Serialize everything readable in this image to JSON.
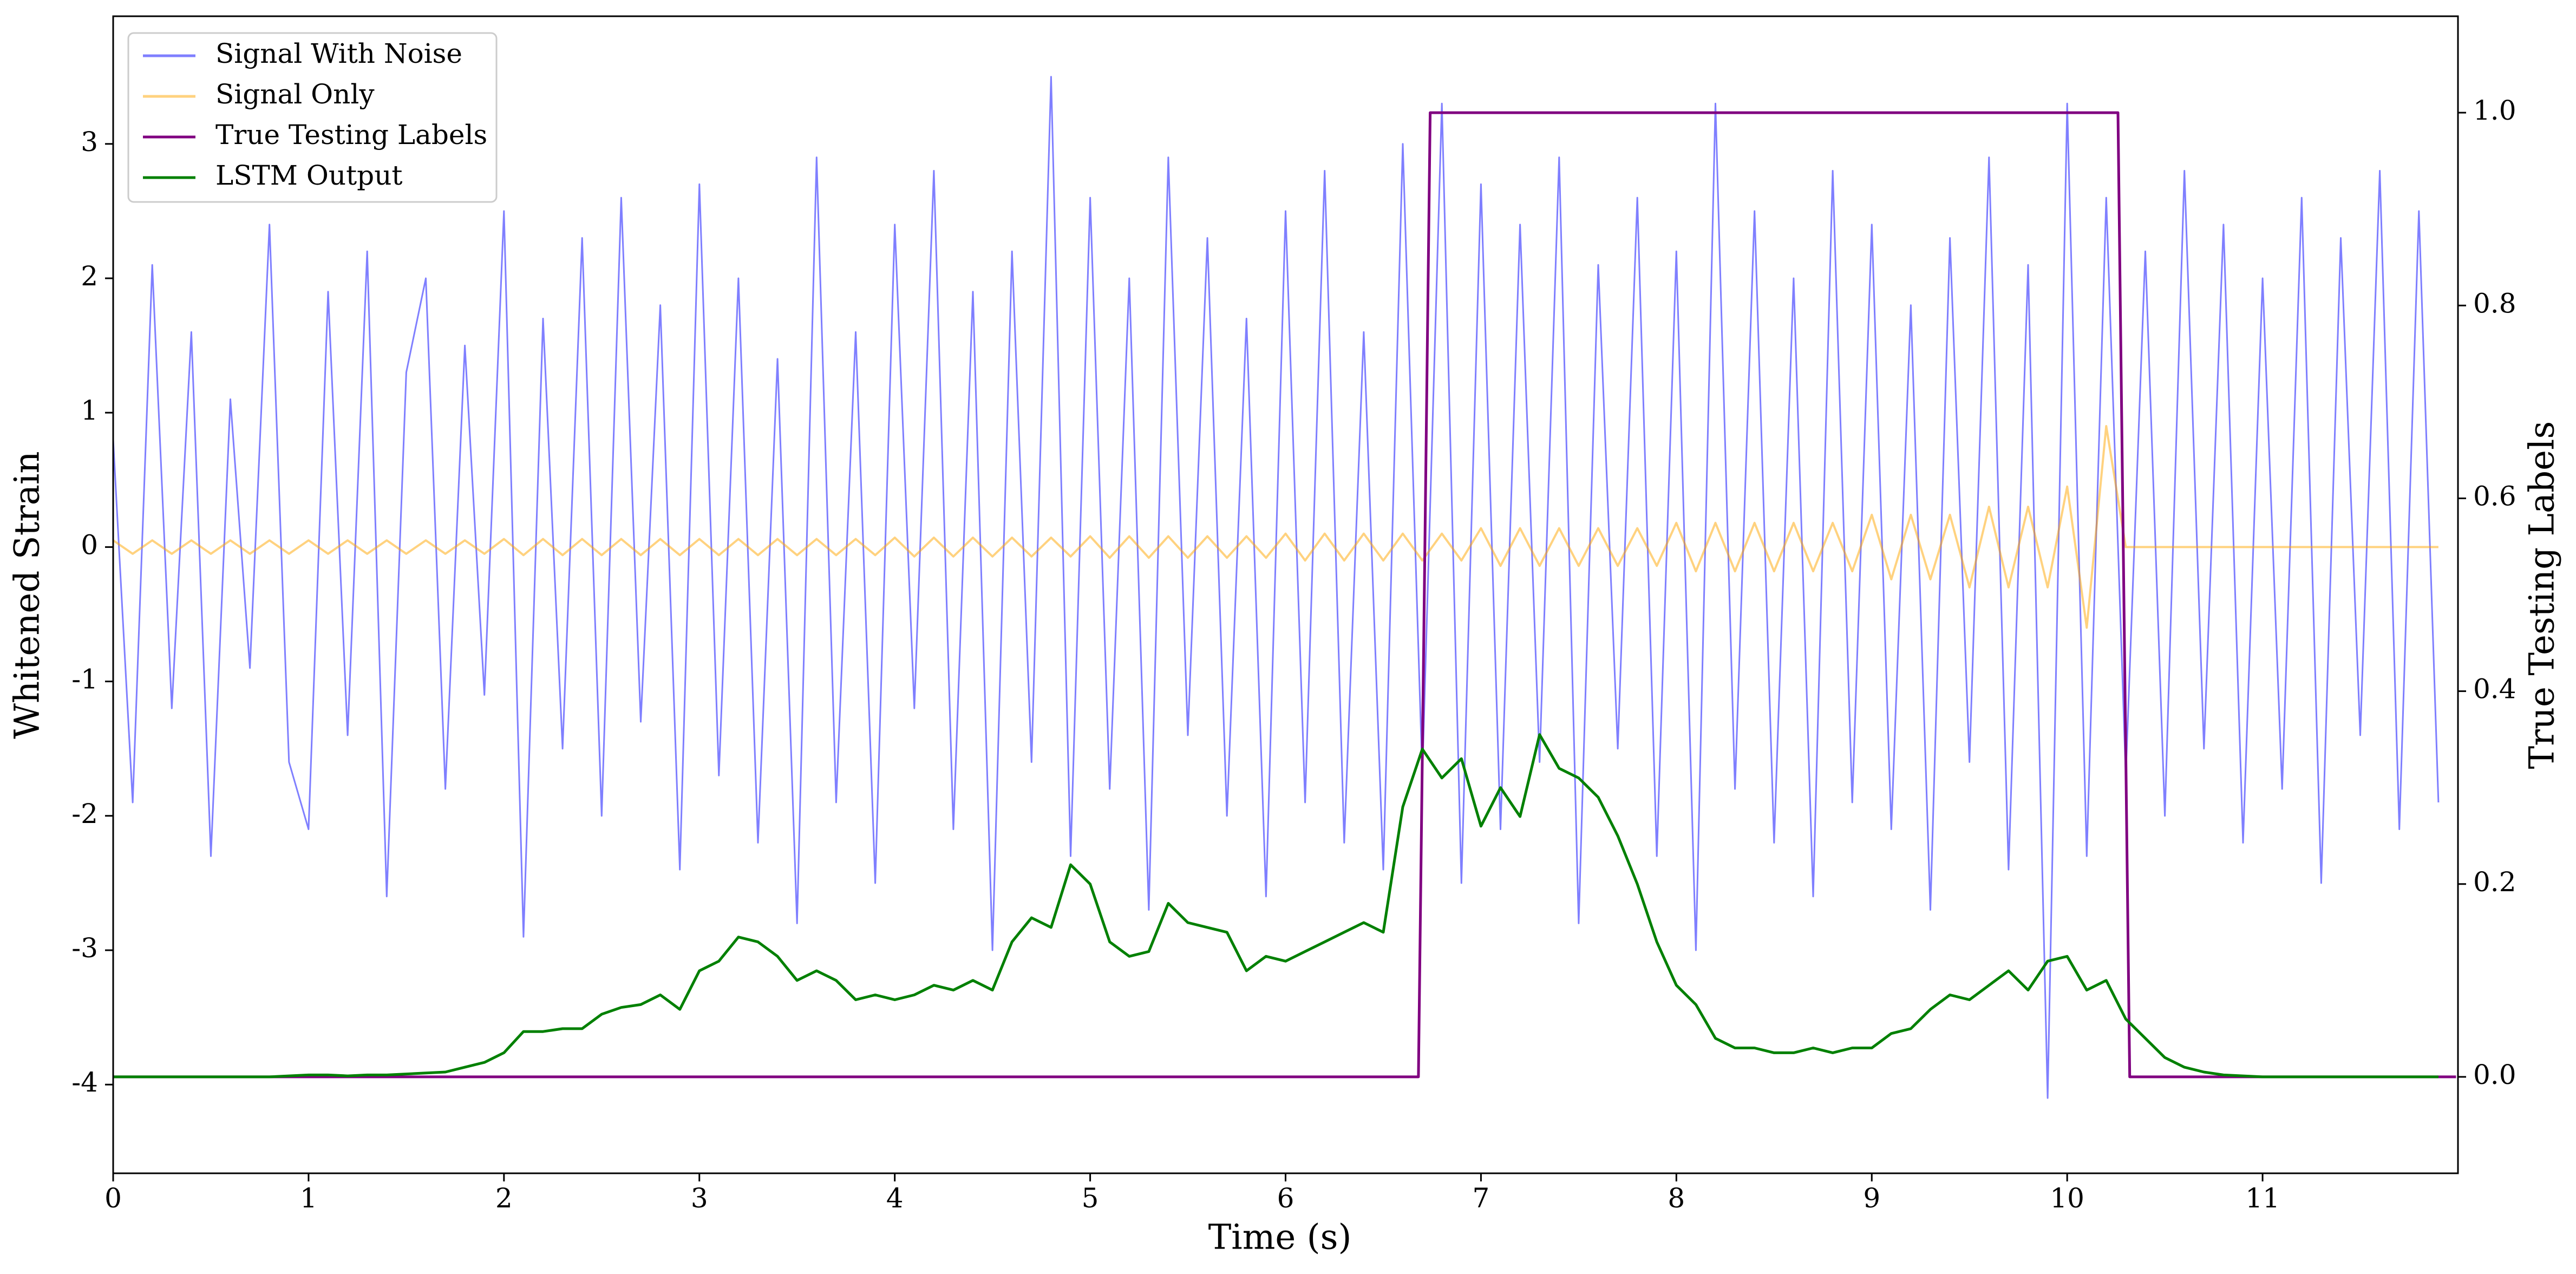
{
  "chart_data": {
    "type": "line",
    "xlabel": "Time (s)",
    "ylabel": "Whitened Strain",
    "y2label": "True Testing Labels",
    "xlim": [
      0,
      12
    ],
    "ylim": [
      -4.66,
      3.95
    ],
    "y2lim": [
      -0.1,
      1.1
    ],
    "xticks": [
      0,
      1,
      2,
      3,
      4,
      5,
      6,
      7,
      8,
      9,
      10,
      11
    ],
    "yticks": [
      -4,
      -3,
      -2,
      -1,
      0,
      1,
      2,
      3
    ],
    "y2ticks": [
      {
        "value": 0,
        "label": "0.0"
      },
      {
        "value": 0.2,
        "label": "0.2"
      },
      {
        "value": 0.4,
        "label": "0.4"
      },
      {
        "value": 0.6,
        "label": "0.6"
      },
      {
        "value": 0.8,
        "label": "0.8"
      },
      {
        "value": 1,
        "label": "1.0"
      }
    ],
    "legend": "upper left",
    "x": [
      0,
      0.1,
      0.2,
      0.3,
      0.4,
      0.5,
      0.6,
      0.7,
      0.8,
      0.9,
      1,
      1.1,
      1.2,
      1.3,
      1.4,
      1.5,
      1.6,
      1.7,
      1.8,
      1.9,
      2,
      2.1,
      2.2,
      2.3,
      2.4,
      2.5,
      2.6,
      2.7,
      2.8,
      2.9,
      3,
      3.1,
      3.2,
      3.3,
      3.4,
      3.5,
      3.6,
      3.7,
      3.8,
      3.9,
      4,
      4.1,
      4.2,
      4.3,
      4.4,
      4.5,
      4.6,
      4.7,
      4.8,
      4.9,
      5,
      5.1,
      5.2,
      5.3,
      5.4,
      5.5,
      5.6,
      5.7,
      5.8,
      5.9,
      6,
      6.1,
      6.2,
      6.3,
      6.4,
      6.5,
      6.6,
      6.7,
      6.8,
      6.9,
      7,
      7.1,
      7.2,
      7.3,
      7.4,
      7.5,
      7.6,
      7.7,
      7.8,
      7.9,
      8,
      8.1,
      8.2,
      8.3,
      8.4,
      8.5,
      8.6,
      8.7,
      8.8,
      8.9,
      9,
      9.1,
      9.2,
      9.3,
      9.4,
      9.5,
      9.6,
      9.7,
      9.8,
      9.9,
      10,
      10.1,
      10.2,
      10.3,
      10.4,
      10.5,
      10.6,
      10.7,
      10.8,
      10.9,
      11,
      11.1,
      11.2,
      11.3,
      11.4,
      11.5,
      11.6,
      11.7,
      11.8,
      11.9
    ],
    "series": [
      {
        "name": "Signal With Noise",
        "color": "#0000ff",
        "alpha": 0.5,
        "values": [
          0.8,
          -1.9,
          2.1,
          -1.2,
          1.6,
          -2.3,
          1.1,
          -0.9,
          2.4,
          -1.6,
          -2.1,
          1.9,
          -1.4,
          2.2,
          -2.6,
          1.3,
          2.0,
          -1.8,
          1.5,
          -1.1,
          2.5,
          -2.9,
          1.7,
          -1.5,
          2.3,
          -2.0,
          2.6,
          -1.3,
          1.8,
          -2.4,
          2.7,
          -1.7,
          2.0,
          -2.2,
          1.4,
          -2.8,
          2.9,
          -1.9,
          1.6,
          -2.5,
          2.4,
          -1.2,
          2.8,
          -2.1,
          1.9,
          -3.0,
          2.2,
          -1.6,
          3.5,
          -2.3,
          2.6,
          -1.8,
          2.0,
          -2.7,
          2.9,
          -1.4,
          2.3,
          -2.0,
          1.7,
          -2.6,
          2.5,
          -1.9,
          2.8,
          -2.2,
          1.6,
          -2.4,
          3.0,
          -1.7,
          3.3,
          -2.5,
          2.7,
          -2.1,
          2.4,
          -1.6,
          2.9,
          -2.8,
          2.1,
          -1.5,
          2.6,
          -2.3,
          2.2,
          -3.0,
          3.3,
          -1.8,
          2.5,
          -2.2,
          2.0,
          -2.6,
          2.8,
          -1.9,
          2.4,
          -2.1,
          1.8,
          -2.7,
          2.3,
          -1.6,
          2.9,
          -2.4,
          2.1,
          -4.1,
          3.3,
          -2.3,
          2.6,
          -1.7,
          2.2,
          -2.0,
          2.8,
          -1.5,
          2.4,
          -2.2,
          2.0,
          -1.8,
          2.6,
          -2.5,
          2.3,
          -1.4,
          2.8,
          -2.1,
          2.5,
          -1.9
        ]
      },
      {
        "name": "Signal Only",
        "color": "#ffa500",
        "alpha": 0.5,
        "values": [
          0.05,
          -0.05,
          0.05,
          -0.05,
          0.05,
          -0.05,
          0.05,
          -0.05,
          0.05,
          -0.05,
          0.05,
          -0.05,
          0.05,
          -0.05,
          0.05,
          -0.05,
          0.05,
          -0.05,
          0.05,
          -0.05,
          0.06,
          -0.06,
          0.06,
          -0.06,
          0.06,
          -0.06,
          0.06,
          -0.06,
          0.06,
          -0.06,
          0.06,
          -0.06,
          0.06,
          -0.06,
          0.06,
          -0.06,
          0.06,
          -0.06,
          0.06,
          -0.06,
          0.07,
          -0.07,
          0.07,
          -0.07,
          0.07,
          -0.07,
          0.07,
          -0.07,
          0.07,
          -0.07,
          0.08,
          -0.08,
          0.08,
          -0.08,
          0.08,
          -0.08,
          0.08,
          -0.08,
          0.08,
          -0.08,
          0.1,
          -0.1,
          0.1,
          -0.1,
          0.1,
          -0.1,
          0.1,
          -0.1,
          0.1,
          -0.1,
          0.14,
          -0.14,
          0.14,
          -0.14,
          0.14,
          -0.14,
          0.14,
          -0.14,
          0.14,
          -0.14,
          0.18,
          -0.18,
          0.18,
          -0.18,
          0.18,
          -0.18,
          0.18,
          -0.18,
          0.18,
          -0.18,
          0.24,
          -0.24,
          0.24,
          -0.24,
          0.24,
          -0.3,
          0.3,
          -0.3,
          0.3,
          -0.3,
          0.45,
          -0.6,
          0.9,
          0,
          0,
          0,
          0,
          0,
          0,
          0,
          0,
          0,
          0,
          0,
          0,
          0,
          0,
          0,
          0,
          0
        ]
      },
      {
        "name": "True Testing Labels",
        "color": "#800080",
        "axis": "y2",
        "x": [
          0,
          6.68,
          6.74,
          10.26,
          10.32,
          11.99
        ],
        "values": [
          0,
          0,
          1,
          1,
          0,
          0
        ]
      },
      {
        "name": "LSTM Output",
        "color": "#008000",
        "axis": "y2",
        "values": [
          0,
          0,
          0,
          0,
          0,
          0,
          0,
          0,
          0,
          0.001,
          0.002,
          0.002,
          0.001,
          0.002,
          0.002,
          0.003,
          0.004,
          0.005,
          0.01,
          0.015,
          0.025,
          0.047,
          0.047,
          0.05,
          0.05,
          0.065,
          0.072,
          0.075,
          0.085,
          0.07,
          0.11,
          0.12,
          0.145,
          0.14,
          0.125,
          0.1,
          0.11,
          0.1,
          0.08,
          0.085,
          0.08,
          0.085,
          0.095,
          0.09,
          0.1,
          0.09,
          0.14,
          0.165,
          0.155,
          0.22,
          0.2,
          0.14,
          0.125,
          0.13,
          0.18,
          0.16,
          0.155,
          0.15,
          0.11,
          0.125,
          0.12,
          0.13,
          0.14,
          0.15,
          0.16,
          0.15,
          0.28,
          0.34,
          0.31,
          0.33,
          0.26,
          0.3,
          0.27,
          0.355,
          0.32,
          0.31,
          0.29,
          0.25,
          0.2,
          0.14,
          0.095,
          0.075,
          0.04,
          0.03,
          0.03,
          0.025,
          0.025,
          0.03,
          0.025,
          0.03,
          0.03,
          0.045,
          0.05,
          0.07,
          0.085,
          0.08,
          0.095,
          0.11,
          0.09,
          0.12,
          0.125,
          0.09,
          0.1,
          0.06,
          0.04,
          0.02,
          0.01,
          0.005,
          0.002,
          0.001,
          0,
          0,
          0,
          0,
          0,
          0,
          0,
          0,
          0,
          0
        ]
      }
    ]
  }
}
